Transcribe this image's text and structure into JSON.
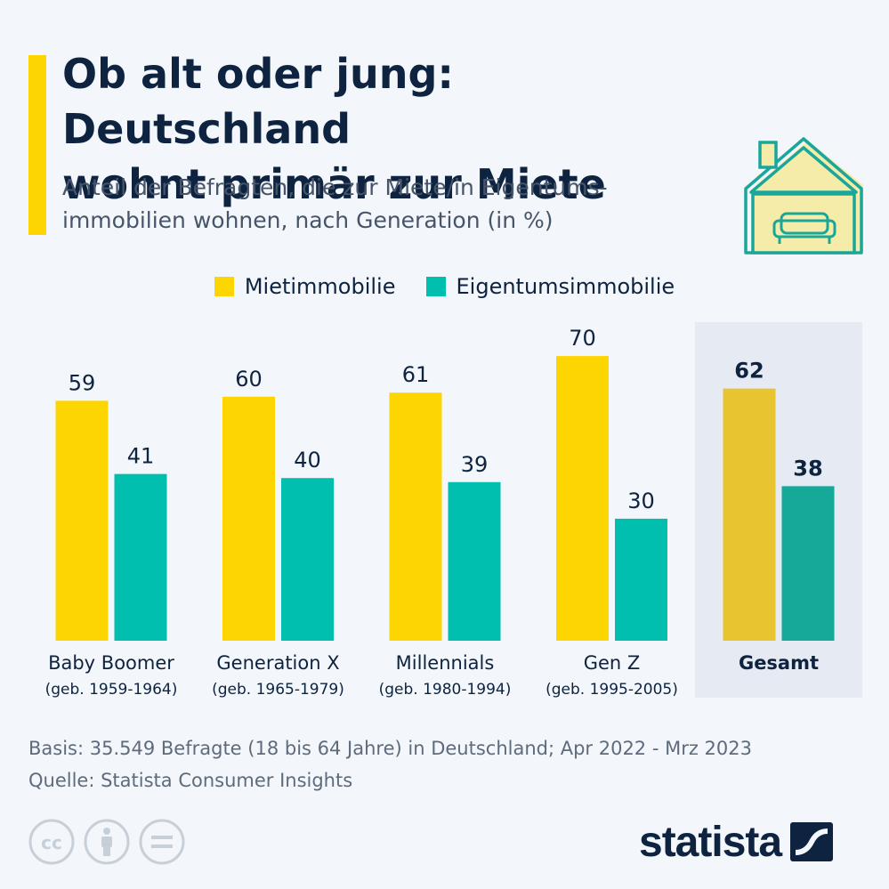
{
  "header": {
    "title_line1": "Ob alt oder jung: Deutschland",
    "title_line2": "wohnt primär zur Miete",
    "subtitle_line1": "Anteil der Befragten, die zur Miete/in Eigentums-",
    "subtitle_line2": "immobilien wohnen, nach Generation (in %)"
  },
  "colors": {
    "rent": "#fdd500",
    "own": "#00bfae",
    "rent_total": "#e8c431",
    "own_total": "#16a899",
    "highlight_bg": "#e5eaf3",
    "accent": "#fdd500"
  },
  "chart_data": {
    "type": "bar",
    "categories": [
      "Baby Boomer",
      "Generation X",
      "Millennials",
      "Gen Z",
      "Gesamt"
    ],
    "category_sublabels": [
      "(geb. 1959-1964)",
      "(geb. 1965-1979)",
      "(geb. 1980-1994)",
      "(geb. 1995-2005)",
      ""
    ],
    "series": [
      {
        "name": "Mietimmobilie",
        "values": [
          59,
          60,
          61,
          70,
          62
        ]
      },
      {
        "name": "Eigentumsimmobilie",
        "values": [
          41,
          40,
          39,
          30,
          38
        ]
      }
    ],
    "highlight_category": "Gesamt",
    "ylim": [
      0,
      100
    ],
    "legend_position": "top-center",
    "grid": false
  },
  "footer": {
    "basis": "Basis: 35.549 Befragte (18 bis 64 Jahre) in Deutschland; Apr 2022 - Mrz 2023",
    "source": "Quelle: Statista Consumer Insights",
    "brand": "statista"
  },
  "icons": {
    "house": "house-with-sofa-icon",
    "license": [
      "cc-icon",
      "attribution-icon",
      "no-derivatives-icon"
    ],
    "logo": "statista-logo-icon"
  }
}
